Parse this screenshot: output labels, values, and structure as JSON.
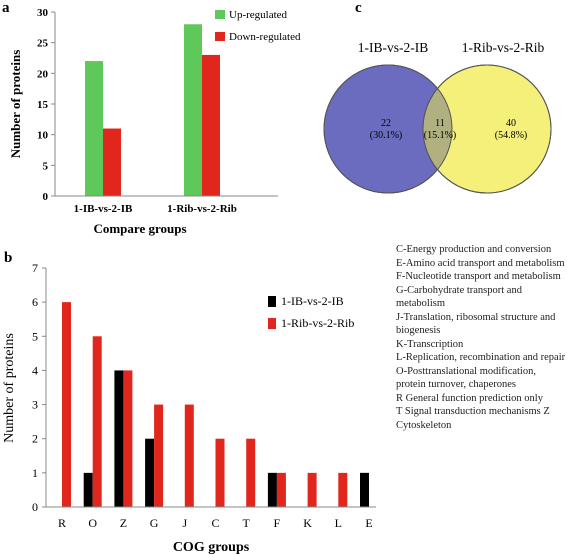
{
  "panel_labels": {
    "a": "a",
    "b": "b",
    "c": "c"
  },
  "cog_legend": [
    "C-Energy production and conversion",
    "E-Amino acid transport and metabolism",
    "F-Nucleotide transport and metabolism",
    "G-Carbohydrate transport and metabolism",
    "J-Translation, ribosomal structure and biogenesis",
    "K-Transcription",
    "L-Replication, recombination and repair",
    "O-Posttranslational modification, protein turnover, chaperones",
    "R General function prediction only",
    "T Signal transduction mechanisms  Z Cytoskeleton"
  ],
  "colors": {
    "up": "#5ec85b",
    "down": "#e0261d",
    "ib": "#000000",
    "rib": "#e0261d",
    "venn_left": "#6b6bc0",
    "venn_right": "#f5f07a",
    "venn_overlap": "#b0b080"
  },
  "chart_data": [
    {
      "panel": "a",
      "type": "bar",
      "categories": [
        "1-IB-vs-2-IB",
        "1-Rib-vs-2-Rib"
      ],
      "series": [
        {
          "name": "Up-regulated",
          "values": [
            22,
            28
          ]
        },
        {
          "name": "Down-regulated",
          "values": [
            11,
            23
          ]
        }
      ],
      "xlabel": "Compare groups",
      "ylabel": "Number of proteins",
      "ylim": [
        0,
        30
      ],
      "yticks": [
        0,
        5,
        10,
        15,
        20,
        25,
        30
      ],
      "legend_position": "top-right",
      "grid": false
    },
    {
      "panel": "b",
      "type": "bar",
      "categories": [
        "R",
        "O",
        "Z",
        "G",
        "J",
        "C",
        "T",
        "F",
        "K",
        "L",
        "E"
      ],
      "series": [
        {
          "name": "1-IB-vs-2-IB",
          "values": [
            0,
            1,
            4,
            2,
            0,
            0,
            0,
            1,
            0,
            0,
            1
          ]
        },
        {
          "name": "1-Rib-vs-2-Rib",
          "values": [
            6,
            5,
            4,
            3,
            3,
            2,
            2,
            1,
            1,
            1,
            0
          ]
        }
      ],
      "xlabel": "COG groups",
      "ylabel": "Number of proteins",
      "ylim": [
        0,
        7
      ],
      "yticks": [
        0,
        1,
        2,
        3,
        4,
        5,
        6,
        7
      ],
      "legend_position": "top-right",
      "grid": false
    },
    {
      "panel": "c",
      "type": "venn",
      "sets": [
        {
          "name": "1-IB-vs-2-IB",
          "only_count": "22",
          "only_percent": "(30.1%)"
        },
        {
          "name": "1-Rib-vs-2-Rib",
          "only_count": "40",
          "only_percent": "(54.8%)"
        }
      ],
      "overlap": {
        "count": "11",
        "percent": "(15.1%)"
      }
    }
  ]
}
